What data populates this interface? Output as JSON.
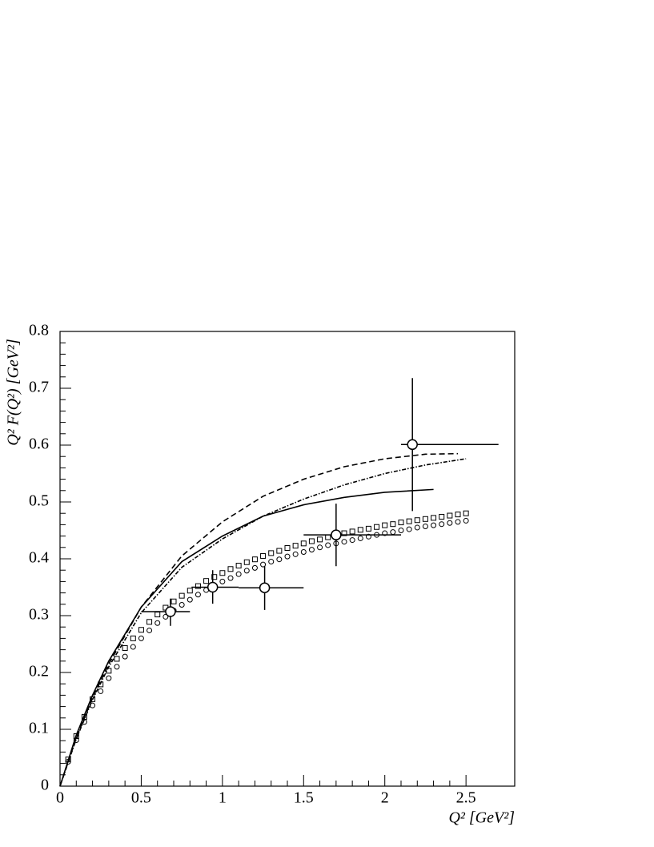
{
  "chart_data": {
    "type": "scatter",
    "xlabel": "Q² [GeV²]",
    "ylabel": "Q² F(Q²) [GeV²]",
    "xlim": [
      0,
      2.8
    ],
    "ylim": [
      0,
      0.8
    ],
    "xticks": [
      0,
      0.5,
      1,
      1.5,
      2,
      2.5
    ],
    "yticks": [
      0,
      0.1,
      0.2,
      0.3,
      0.4,
      0.5,
      0.6,
      0.7,
      0.8
    ],
    "series": [
      {
        "style": "solid",
        "color": "#000000",
        "x": [
          0,
          0.1,
          0.2,
          0.3,
          0.5,
          0.75,
          1.0,
          1.25,
          1.5,
          1.75,
          2.0,
          2.3
        ],
        "values": [
          0,
          0.09,
          0.16,
          0.22,
          0.315,
          0.395,
          0.44,
          0.475,
          0.495,
          0.508,
          0.517,
          0.522
        ]
      },
      {
        "style": "dashed",
        "color": "#000000",
        "x": [
          0,
          0.1,
          0.2,
          0.3,
          0.5,
          0.75,
          1.0,
          1.25,
          1.5,
          1.75,
          2.0,
          2.25,
          2.45
        ],
        "values": [
          0,
          0.085,
          0.155,
          0.215,
          0.315,
          0.405,
          0.465,
          0.51,
          0.54,
          0.562,
          0.576,
          0.584,
          0.585
        ]
      },
      {
        "style": "dashdot",
        "color": "#000000",
        "x": [
          0,
          0.1,
          0.2,
          0.3,
          0.5,
          0.75,
          1.0,
          1.25,
          1.5,
          1.75,
          2.0,
          2.25,
          2.5
        ],
        "values": [
          0,
          0.083,
          0.152,
          0.21,
          0.305,
          0.385,
          0.435,
          0.475,
          0.505,
          0.53,
          0.55,
          0.565,
          0.576
        ]
      },
      {
        "style": "square",
        "color": "#000000",
        "x": [
          0.05,
          0.1,
          0.15,
          0.2,
          0.25,
          0.3,
          0.35,
          0.4,
          0.45,
          0.5,
          0.55,
          0.6,
          0.65,
          0.7,
          0.75,
          0.8,
          0.85,
          0.9,
          0.95,
          1.0,
          1.05,
          1.1,
          1.15,
          1.2,
          1.25,
          1.3,
          1.35,
          1.4,
          1.45,
          1.5,
          1.55,
          1.6,
          1.65,
          1.7,
          1.75,
          1.8,
          1.85,
          1.9,
          1.95,
          2.0,
          2.05,
          2.1,
          2.15,
          2.2,
          2.25,
          2.3,
          2.35,
          2.4,
          2.45,
          2.5
        ],
        "values": [
          0.047,
          0.088,
          0.122,
          0.153,
          0.179,
          0.203,
          0.224,
          0.243,
          0.26,
          0.275,
          0.289,
          0.302,
          0.314,
          0.325,
          0.335,
          0.344,
          0.352,
          0.361,
          0.368,
          0.375,
          0.382,
          0.388,
          0.394,
          0.399,
          0.405,
          0.41,
          0.414,
          0.419,
          0.423,
          0.427,
          0.431,
          0.434,
          0.438,
          0.441,
          0.445,
          0.448,
          0.451,
          0.453,
          0.456,
          0.459,
          0.461,
          0.464,
          0.466,
          0.468,
          0.47,
          0.472,
          0.474,
          0.476,
          0.478,
          0.48
        ]
      },
      {
        "style": "circle",
        "color": "#000000",
        "x": [
          0.05,
          0.1,
          0.15,
          0.2,
          0.25,
          0.3,
          0.35,
          0.4,
          0.45,
          0.5,
          0.55,
          0.6,
          0.65,
          0.7,
          0.75,
          0.8,
          0.85,
          0.9,
          0.95,
          1.0,
          1.05,
          1.1,
          1.15,
          1.2,
          1.25,
          1.3,
          1.35,
          1.4,
          1.45,
          1.5,
          1.55,
          1.6,
          1.65,
          1.7,
          1.75,
          1.8,
          1.85,
          1.9,
          1.95,
          2.0,
          2.05,
          2.1,
          2.15,
          2.2,
          2.25,
          2.3,
          2.35,
          2.4,
          2.45,
          2.5
        ],
        "values": [
          0.043,
          0.081,
          0.113,
          0.142,
          0.167,
          0.19,
          0.21,
          0.228,
          0.245,
          0.26,
          0.274,
          0.287,
          0.298,
          0.309,
          0.319,
          0.328,
          0.337,
          0.345,
          0.353,
          0.36,
          0.366,
          0.373,
          0.379,
          0.384,
          0.39,
          0.395,
          0.399,
          0.404,
          0.408,
          0.412,
          0.416,
          0.42,
          0.424,
          0.427,
          0.43,
          0.433,
          0.436,
          0.439,
          0.442,
          0.445,
          0.447,
          0.45,
          0.452,
          0.455,
          0.457,
          0.459,
          0.461,
          0.463,
          0.465,
          0.467
        ]
      },
      {
        "style": "errorbar",
        "color": "#000000",
        "x": [
          0.68,
          0.94,
          1.26,
          1.7,
          2.17
        ],
        "values": [
          0.307,
          0.35,
          0.349,
          0.442,
          0.601
        ],
        "x_lo": [
          0.5,
          0.81,
          1.1,
          1.5,
          2.1
        ],
        "x_hi": [
          0.8,
          1.1,
          1.5,
          2.1,
          2.7
        ],
        "y_lo": [
          0.282,
          0.321,
          0.31,
          0.387,
          0.484
        ],
        "y_hi": [
          0.33,
          0.38,
          0.387,
          0.497,
          0.718
        ]
      }
    ]
  }
}
